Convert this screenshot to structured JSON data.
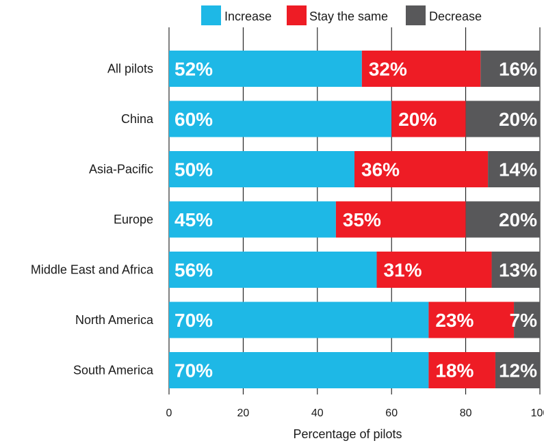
{
  "chart_data": {
    "type": "bar",
    "orientation": "horizontal",
    "stacked": true,
    "categories": [
      "All pilots",
      "China",
      "Asia-Pacific",
      "Europe",
      "Middle East and Africa",
      "North America",
      "South America"
    ],
    "series": [
      {
        "name": "Increase",
        "color": "#1eb8e6",
        "values": [
          52,
          60,
          50,
          45,
          56,
          70,
          70
        ],
        "labels": [
          "52%",
          "60%",
          "50%",
          "45%",
          "56%",
          "70%",
          "70%"
        ]
      },
      {
        "name": "Stay the same",
        "color": "#ee1c25",
        "values": [
          32,
          20,
          36,
          35,
          31,
          23,
          18
        ],
        "labels": [
          "32%",
          "20%",
          "36%",
          "35%",
          "31%",
          "23%",
          "18%"
        ]
      },
      {
        "name": "Decrease",
        "color": "#58585a",
        "values": [
          16,
          20,
          14,
          20,
          13,
          7,
          12
        ],
        "labels": [
          "16%",
          "20%",
          "14%",
          "20%",
          "13%",
          "7%",
          "12%"
        ]
      }
    ],
    "xlabel": "Percentage of pilots",
    "ylabel": "",
    "xlim": [
      0,
      100
    ],
    "xticks": [
      "0",
      "20",
      "40",
      "60",
      "80",
      "100"
    ],
    "grid": true,
    "legend_position": "top"
  }
}
